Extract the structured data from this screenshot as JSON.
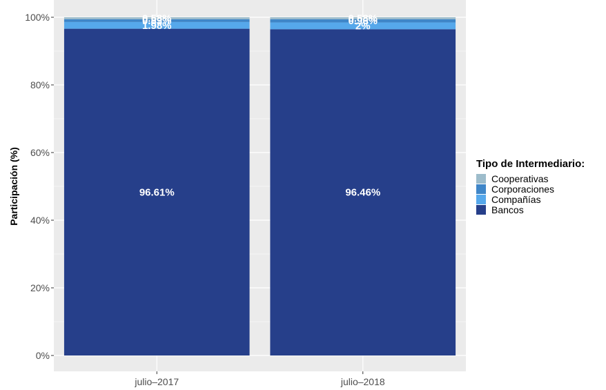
{
  "chart_data": {
    "type": "bar",
    "stacked": true,
    "categories": [
      "julio–2017",
      "julio–2018"
    ],
    "series": [
      {
        "name": "Bancos",
        "values": [
          96.61,
          96.46
        ],
        "color": "#263f8a"
      },
      {
        "name": "Compañías",
        "values": [
          1.98,
          2.0
        ],
        "color": "#56a8eb"
      },
      {
        "name": "Corporaciones",
        "values": [
          0.83,
          0.96
        ],
        "color": "#3f86c8"
      },
      {
        "name": "Cooperativas",
        "values": [
          0.58,
          0.58
        ],
        "color": "#9dbccb"
      }
    ],
    "data_labels": [
      [
        "96.61%",
        "1.98%",
        "0.83%",
        "0.58%"
      ],
      [
        "96.46%",
        "2%",
        "0.96%",
        "0.58%"
      ]
    ],
    "title": "",
    "xlabel": "",
    "ylabel": "Participación (%)",
    "ylim": [
      0,
      100
    ],
    "yticks": [
      "0%",
      "20%",
      "40%",
      "60%",
      "80%",
      "100%"
    ],
    "ytick_values": [
      0,
      20,
      40,
      60,
      80,
      100
    ],
    "legend": {
      "title": "Tipo de Intermediario:",
      "entries": [
        "Cooperativas",
        "Corporaciones",
        "Compañías",
        "Bancos"
      ],
      "placement": "right"
    },
    "grid": true,
    "panel_background": "#ebebeb"
  }
}
